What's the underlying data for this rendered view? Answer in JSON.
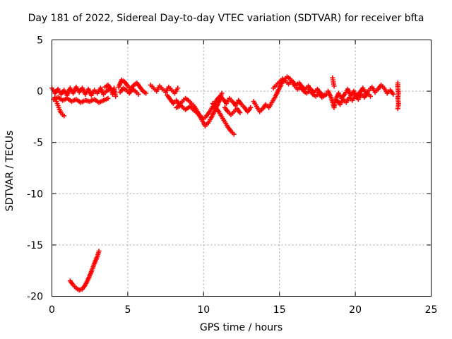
{
  "chart_data": {
    "type": "scatter",
    "title": "Day 181 of 2022, Sidereal Day-to-day VTEC variation (SDTVAR) for receiver bfta",
    "xlabel": "GPS time / hours",
    "ylabel": "SDTVAR / TECUs",
    "xlim": [
      0,
      25
    ],
    "ylim": [
      -20,
      5
    ],
    "xticks": [
      0,
      5,
      10,
      15,
      20,
      25
    ],
    "yticks": [
      5,
      0,
      -5,
      -10,
      -15,
      -20
    ],
    "grid": true,
    "marker": "plus",
    "color": "#ff0000",
    "series": [
      {
        "name": "SDTVAR",
        "segments": [
          [
            [
              0.0,
              0.3
            ],
            [
              0.2,
              -0.2
            ],
            [
              0.4,
              0.2
            ],
            [
              0.6,
              -0.3
            ],
            [
              0.8,
              0.1
            ],
            [
              1.0,
              -0.4
            ],
            [
              1.2,
              0.3
            ],
            [
              1.4,
              -0.2
            ],
            [
              1.6,
              0.4
            ],
            [
              1.8,
              -0.1
            ],
            [
              2.0,
              0.3
            ],
            [
              2.2,
              -0.3
            ],
            [
              2.4,
              0.2
            ],
            [
              2.6,
              -0.4
            ],
            [
              2.8,
              0.1
            ],
            [
              3.0,
              -0.2
            ],
            [
              3.2,
              0.3
            ],
            [
              3.4,
              -0.3
            ],
            [
              3.6,
              0.0
            ],
            [
              3.8,
              0.2
            ]
          ],
          [
            [
              0.2,
              -0.6
            ],
            [
              0.3,
              -1.0
            ],
            [
              0.4,
              -1.4
            ],
            [
              0.5,
              -1.8
            ],
            [
              0.6,
              -2.1
            ],
            [
              0.7,
              -2.3
            ],
            [
              0.8,
              -2.4
            ]
          ],
          [
            [
              0.1,
              -0.8
            ],
            [
              0.4,
              -0.6
            ],
            [
              0.7,
              -0.9
            ],
            [
              1.0,
              -0.7
            ],
            [
              1.3,
              -1.0
            ],
            [
              1.6,
              -0.8
            ],
            [
              1.9,
              -1.1
            ],
            [
              2.2,
              -0.9
            ],
            [
              2.5,
              -1.0
            ],
            [
              2.8,
              -0.8
            ],
            [
              3.1,
              -1.1
            ],
            [
              3.4,
              -0.9
            ],
            [
              3.7,
              -0.7
            ]
          ],
          [
            [
              3.5,
              0.4
            ],
            [
              3.7,
              0.6
            ],
            [
              3.9,
              0.2
            ],
            [
              4.0,
              -0.3
            ],
            [
              4.1,
              0.3
            ],
            [
              4.2,
              -0.5
            ]
          ],
          [
            [
              1.2,
              -18.5
            ],
            [
              1.4,
              -18.9
            ],
            [
              1.6,
              -19.2
            ],
            [
              1.8,
              -19.4
            ],
            [
              2.0,
              -19.3
            ],
            [
              2.2,
              -18.9
            ],
            [
              2.4,
              -18.3
            ],
            [
              2.6,
              -17.6
            ],
            [
              2.8,
              -16.8
            ],
            [
              3.0,
              -16.1
            ],
            [
              3.1,
              -15.6
            ]
          ],
          [
            [
              4.4,
              0.4
            ],
            [
              4.6,
              1.1
            ],
            [
              4.8,
              0.9
            ],
            [
              5.0,
              0.5
            ],
            [
              5.2,
              0.2
            ],
            [
              5.4,
              0.6
            ],
            [
              5.6,
              0.8
            ],
            [
              5.8,
              0.4
            ],
            [
              6.0,
              0.0
            ],
            [
              6.2,
              -0.2
            ]
          ],
          [
            [
              4.5,
              -0.1
            ],
            [
              4.7,
              0.3
            ],
            [
              4.9,
              0.1
            ],
            [
              5.1,
              -0.2
            ],
            [
              5.3,
              0.2
            ],
            [
              5.5,
              0.0
            ],
            [
              5.7,
              -0.3
            ]
          ],
          [
            [
              6.5,
              0.6
            ],
            [
              6.7,
              0.3
            ],
            [
              6.9,
              0.0
            ],
            [
              7.1,
              0.5
            ],
            [
              7.3,
              0.2
            ],
            [
              7.5,
              -0.1
            ],
            [
              7.7,
              0.4
            ],
            [
              7.9,
              0.1
            ],
            [
              8.1,
              -0.2
            ],
            [
              8.3,
              0.3
            ]
          ],
          [
            [
              7.6,
              -0.4
            ],
            [
              7.8,
              -0.8
            ],
            [
              8.0,
              -1.2
            ],
            [
              8.2,
              -0.9
            ],
            [
              8.4,
              -1.3
            ],
            [
              8.6,
              -1.0
            ],
            [
              8.8,
              -0.7
            ],
            [
              9.0,
              -0.9
            ],
            [
              9.2,
              -1.2
            ],
            [
              9.4,
              -1.5
            ],
            [
              9.6,
              -2.0
            ],
            [
              9.8,
              -2.6
            ],
            [
              10.0,
              -3.1
            ],
            [
              10.1,
              -3.4
            ],
            [
              10.3,
              -3.1
            ],
            [
              10.5,
              -2.6
            ],
            [
              10.7,
              -2.0
            ],
            [
              10.9,
              -1.4
            ],
            [
              11.1,
              -0.7
            ],
            [
              11.2,
              -0.2
            ]
          ],
          [
            [
              8.2,
              -1.6
            ],
            [
              8.5,
              -1.4
            ],
            [
              8.8,
              -1.8
            ],
            [
              9.1,
              -1.5
            ],
            [
              9.4,
              -1.9
            ],
            [
              9.7,
              -2.3
            ],
            [
              10.0,
              -2.7
            ],
            [
              10.2,
              -2.4
            ],
            [
              10.4,
              -2.0
            ],
            [
              10.6,
              -1.5
            ],
            [
              10.8,
              -1.0
            ],
            [
              11.0,
              -0.6
            ]
          ],
          [
            [
              10.6,
              -1.2
            ],
            [
              10.8,
              -1.6
            ],
            [
              11.0,
              -2.0
            ],
            [
              11.2,
              -2.5
            ],
            [
              11.4,
              -3.0
            ],
            [
              11.6,
              -3.5
            ],
            [
              11.8,
              -3.9
            ],
            [
              12.0,
              -4.2
            ]
          ],
          [
            [
              11.1,
              -0.5
            ],
            [
              11.3,
              -0.8
            ],
            [
              11.5,
              -1.2
            ],
            [
              11.7,
              -0.7
            ],
            [
              11.9,
              -1.0
            ],
            [
              12.1,
              -1.4
            ],
            [
              12.3,
              -0.9
            ],
            [
              12.5,
              -1.3
            ],
            [
              12.7,
              -1.6
            ],
            [
              12.9,
              -2.0
            ],
            [
              13.1,
              -1.6
            ]
          ],
          [
            [
              11.4,
              -1.6
            ],
            [
              11.6,
              -2.0
            ],
            [
              11.8,
              -2.3
            ],
            [
              12.0,
              -2.0
            ],
            [
              12.2,
              -1.7
            ],
            [
              12.4,
              -2.1
            ]
          ],
          [
            [
              13.3,
              -1.0
            ],
            [
              13.5,
              -1.5
            ],
            [
              13.7,
              -2.0
            ],
            [
              13.9,
              -1.7
            ],
            [
              14.1,
              -1.3
            ],
            [
              14.3,
              -1.6
            ],
            [
              14.5,
              -1.1
            ],
            [
              14.7,
              -0.6
            ],
            [
              14.9,
              0.0
            ],
            [
              15.1,
              0.6
            ],
            [
              15.3,
              1.1
            ],
            [
              15.5,
              1.4
            ],
            [
              15.7,
              1.2
            ],
            [
              15.9,
              0.9
            ],
            [
              16.1,
              0.6
            ],
            [
              16.3,
              0.8
            ],
            [
              16.5,
              0.4
            ],
            [
              16.7,
              0.2
            ],
            [
              16.9,
              0.5
            ],
            [
              17.1,
              0.1
            ],
            [
              17.3,
              -0.1
            ],
            [
              17.5,
              0.2
            ],
            [
              17.7,
              -0.2
            ],
            [
              17.9,
              -0.4
            ],
            [
              18.1,
              -0.3
            ]
          ],
          [
            [
              14.6,
              0.3
            ],
            [
              14.8,
              0.6
            ],
            [
              15.0,
              0.9
            ],
            [
              15.2,
              1.2
            ],
            [
              15.4,
              1.0
            ],
            [
              15.6,
              0.7
            ],
            [
              15.8,
              1.0
            ],
            [
              16.0,
              0.5
            ],
            [
              16.2,
              0.2
            ],
            [
              16.4,
              0.4
            ],
            [
              16.6,
              0.0
            ],
            [
              16.8,
              -0.2
            ],
            [
              17.0,
              0.1
            ],
            [
              17.2,
              -0.3
            ],
            [
              17.4,
              -0.5
            ],
            [
              17.6,
              -0.2
            ],
            [
              17.8,
              -0.6
            ],
            [
              18.0,
              -0.4
            ]
          ],
          [
            [
              18.2,
              0.0
            ],
            [
              18.4,
              -0.6
            ],
            [
              18.5,
              -1.1
            ],
            [
              18.6,
              -1.6
            ],
            [
              18.7,
              -0.8
            ],
            [
              18.9,
              -0.2
            ],
            [
              19.1,
              -0.7
            ],
            [
              19.3,
              -0.3
            ],
            [
              19.5,
              0.2
            ],
            [
              19.7,
              -0.4
            ],
            [
              19.9,
              0.0
            ],
            [
              20.1,
              -0.5
            ],
            [
              20.3,
              -0.1
            ],
            [
              20.5,
              0.3
            ],
            [
              20.7,
              -0.2
            ],
            [
              20.9,
              0.1
            ],
            [
              21.1,
              0.4
            ],
            [
              21.3,
              -0.1
            ],
            [
              21.5,
              0.2
            ],
            [
              21.7,
              0.6
            ],
            [
              21.9,
              0.3
            ],
            [
              22.1,
              -0.2
            ],
            [
              22.3,
              0.1
            ],
            [
              22.5,
              -0.3
            ]
          ],
          [
            [
              18.5,
              1.3
            ],
            [
              18.55,
              0.9
            ],
            [
              18.6,
              0.5
            ]
          ],
          [
            [
              18.8,
              -0.9
            ],
            [
              19.0,
              -1.3
            ],
            [
              19.2,
              -0.8
            ],
            [
              19.4,
              -1.1
            ],
            [
              19.6,
              -0.6
            ],
            [
              19.8,
              -0.9
            ],
            [
              20.0,
              -0.4
            ],
            [
              20.2,
              -0.8
            ],
            [
              20.4,
              -0.3
            ],
            [
              20.6,
              -0.6
            ],
            [
              20.8,
              -0.2
            ],
            [
              21.0,
              -0.5
            ]
          ],
          [
            [
              22.8,
              0.8
            ],
            [
              22.8,
              0.3
            ],
            [
              22.85,
              -0.2
            ],
            [
              22.8,
              -0.7
            ],
            [
              22.85,
              -1.2
            ],
            [
              22.8,
              -1.7
            ]
          ]
        ]
      }
    ]
  }
}
